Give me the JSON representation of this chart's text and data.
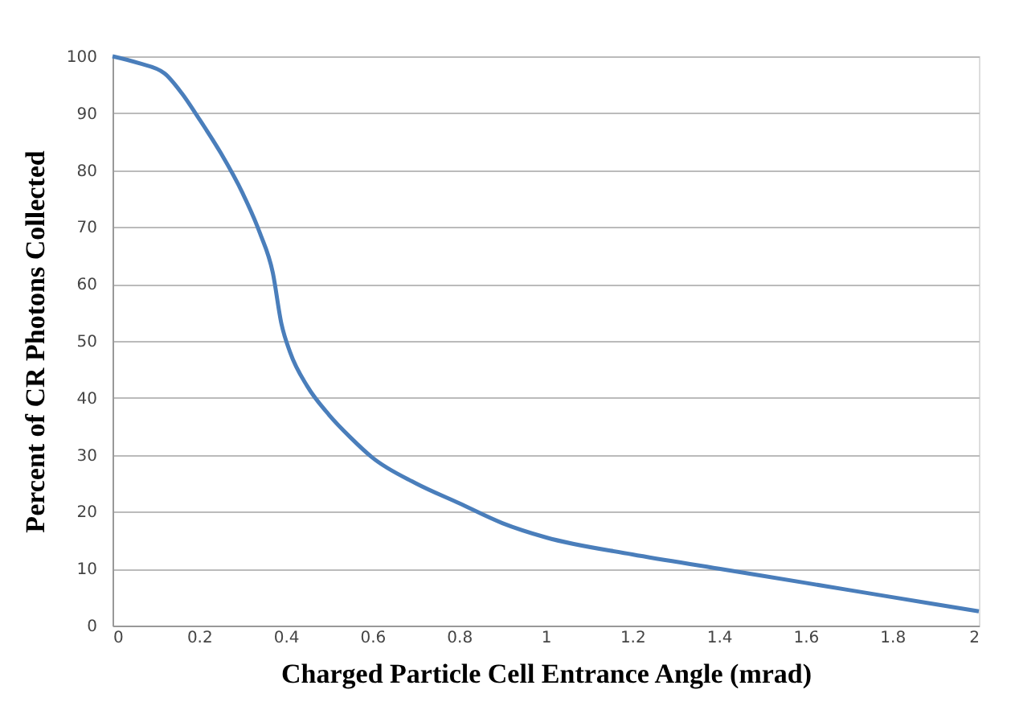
{
  "chart_data": {
    "type": "line",
    "xlabel": "Charged Particle Cell Entrance Angle (mrad)",
    "ylabel": "Percent of CR Photons Collected",
    "x": [
      0,
      0.06,
      0.12,
      0.16,
      0.2,
      0.25,
      0.3,
      0.34,
      0.37,
      0.39,
      0.41,
      0.45,
      0.5,
      0.55,
      0.6,
      0.7,
      0.8,
      0.9,
      1.0,
      1.2,
      1.4,
      1.6,
      1.8,
      2.0
    ],
    "series": [
      {
        "color": "#4a7ebb",
        "values": [
          100,
          98.8,
          97,
          93.5,
          89,
          83,
          76,
          69,
          62,
          53,
          48,
          42,
          37,
          33,
          29.5,
          25,
          21.5,
          18,
          15.5,
          12.5,
          10,
          7.5,
          5,
          2.5
        ]
      }
    ],
    "xlim": [
      0,
      2
    ],
    "ylim": [
      0,
      100
    ],
    "xticks": [
      0,
      0.2,
      0.4,
      0.6,
      0.8,
      1,
      1.2,
      1.4,
      1.6,
      1.8,
      2
    ],
    "yticks": [
      0,
      10,
      20,
      30,
      40,
      50,
      60,
      70,
      80,
      90,
      100
    ],
    "grid": "y",
    "legend": false,
    "marker": "none",
    "line_style": "solid"
  }
}
